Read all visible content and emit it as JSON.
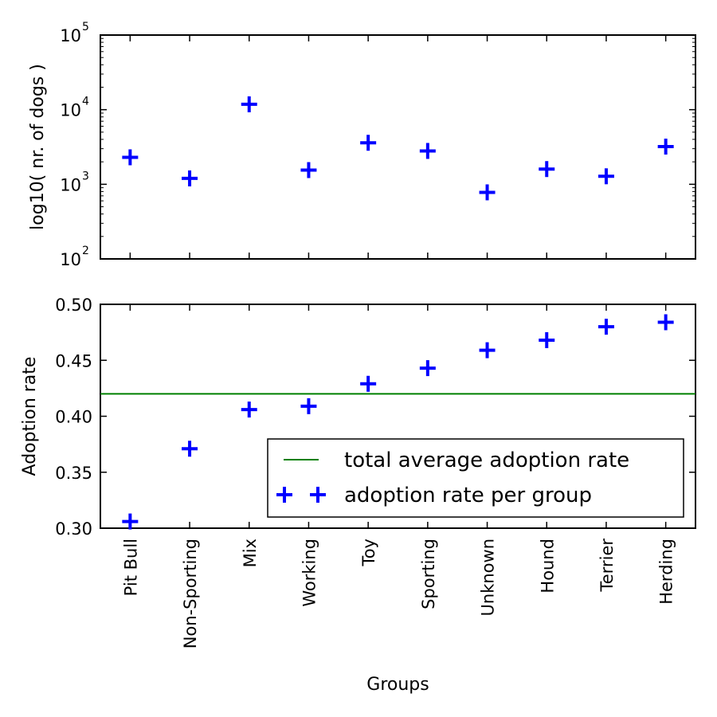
{
  "chart_data": [
    {
      "type": "scatter",
      "categories": [
        "Pit Bull",
        "Non-Sporting",
        "Mix",
        "Working",
        "Toy",
        "Sporting",
        "Unknown",
        "Hound",
        "Terrier",
        "Herding"
      ],
      "xlabel": "",
      "ylabel": "log10( nr. of dogs )",
      "yscale": "log",
      "ylim": [
        100,
        100000
      ],
      "y_ticks": [
        {
          "base": "10",
          "exp": "2",
          "value": 100
        },
        {
          "base": "10",
          "exp": "3",
          "value": 1000
        },
        {
          "base": "10",
          "exp": "4",
          "value": 10000
        },
        {
          "base": "10",
          "exp": "5",
          "value": 100000
        }
      ],
      "series": [
        {
          "values": [
            2300,
            1200,
            11800,
            1550,
            3600,
            2800,
            780,
            1600,
            1280,
            3200
          ],
          "marker": "+",
          "color": "#0000ff"
        }
      ]
    },
    {
      "type": "scatter",
      "categories": [
        "Pit Bull",
        "Non-Sporting",
        "Mix",
        "Working",
        "Toy",
        "Sporting",
        "Unknown",
        "Hound",
        "Terrier",
        "Herding"
      ],
      "xlabel": "Groups",
      "ylabel": "Adoption rate",
      "ylim": [
        0.3,
        0.5
      ],
      "y_ticks": [
        "0.30",
        "0.35",
        "0.40",
        "0.45",
        "0.50"
      ],
      "series": [
        {
          "name": "adoption rate per group",
          "values": [
            0.306,
            0.371,
            0.406,
            0.409,
            0.429,
            0.443,
            0.459,
            0.468,
            0.48,
            0.484
          ],
          "marker": "+",
          "color": "#0000ff"
        }
      ],
      "hlines": [
        {
          "name": "total average adoption rate",
          "value": 0.42,
          "color": "#008000"
        }
      ],
      "legend": {
        "position": "lower-right"
      }
    }
  ]
}
